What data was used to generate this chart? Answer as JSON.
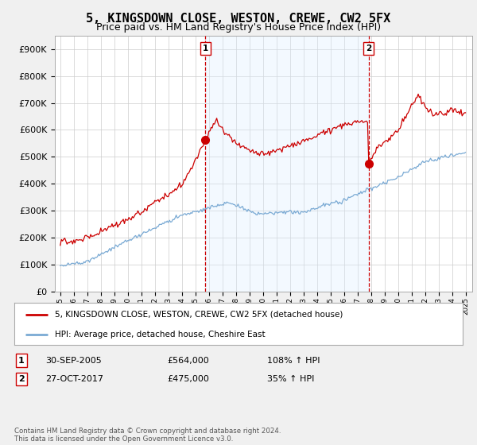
{
  "title": "5, KINGSDOWN CLOSE, WESTON, CREWE, CW2 5FX",
  "subtitle": "Price paid vs. HM Land Registry's House Price Index (HPI)",
  "ylim": [
    0,
    950000
  ],
  "yticks": [
    0,
    100000,
    200000,
    300000,
    400000,
    500000,
    600000,
    700000,
    800000,
    900000
  ],
  "ytick_labels": [
    "£0",
    "£100K",
    "£200K",
    "£300K",
    "£400K",
    "£500K",
    "£600K",
    "£700K",
    "£800K",
    "£900K"
  ],
  "hpi_color": "#7aaad4",
  "price_color": "#cc0000",
  "shade_color": "#ddeeff",
  "transaction1_date": 2005.75,
  "transaction1_price": 564000,
  "transaction2_date": 2017.83,
  "transaction2_price": 475000,
  "legend_line1": "5, KINGSDOWN CLOSE, WESTON, CREWE, CW2 5FX (detached house)",
  "legend_line2": "HPI: Average price, detached house, Cheshire East",
  "table_row1": [
    "1",
    "30-SEP-2005",
    "£564,000",
    "108% ↑ HPI"
  ],
  "table_row2": [
    "2",
    "27-OCT-2017",
    "£475,000",
    "35% ↑ HPI"
  ],
  "footnote": "Contains HM Land Registry data © Crown copyright and database right 2024.\nThis data is licensed under the Open Government Licence v3.0.",
  "bg_color": "#f0f0f0",
  "plot_bg_color": "#ffffff",
  "grid_color": "#cccccc",
  "title_fontsize": 11,
  "subtitle_fontsize": 9,
  "tick_fontsize": 8
}
